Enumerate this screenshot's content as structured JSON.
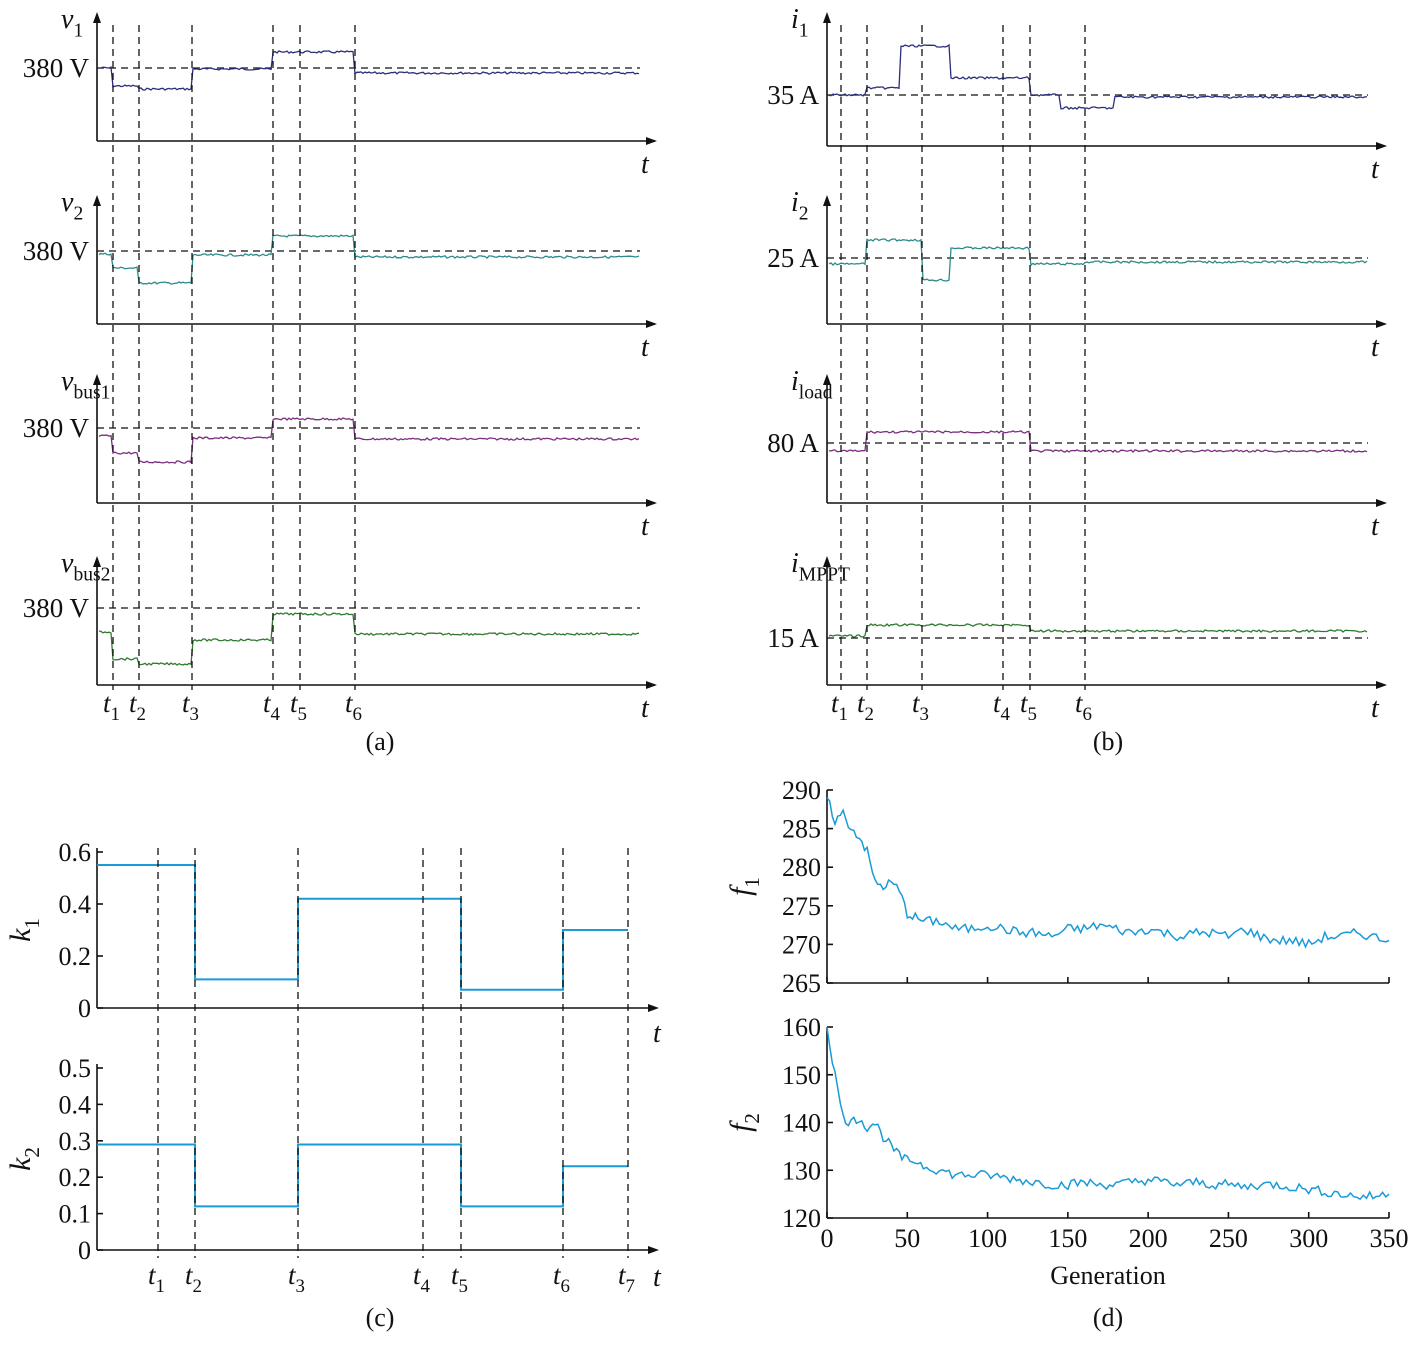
{
  "chart_data": [
    {
      "type": "line",
      "panel_label": "(a)",
      "x_label": "t",
      "time_labels": [
        {
          "base": "t",
          "sub": "1"
        },
        {
          "base": "t",
          "sub": "2"
        },
        {
          "base": "t",
          "sub": "3"
        },
        {
          "base": "t",
          "sub": "4"
        },
        {
          "base": "t",
          "sub": "5"
        },
        {
          "base": "t",
          "sub": "6"
        }
      ],
      "subplots": [
        {
          "ylabel": {
            "base": "v",
            "sub": "1"
          },
          "ref_label": "380 V",
          "color": "#2b2f7a"
        },
        {
          "ylabel": {
            "base": "v",
            "sub": "2"
          },
          "ref_label": "380 V",
          "color": "#2e8a8a"
        },
        {
          "ylabel": {
            "base": "v",
            "sub": "bus1"
          },
          "ref_label": "380 V",
          "color": "#7a2f7f"
        },
        {
          "ylabel": {
            "base": "v",
            "sub": "bus2"
          },
          "ref_label": "380 V",
          "color": "#2f7a2f"
        }
      ]
    },
    {
      "type": "line",
      "panel_label": "(b)",
      "x_label": "t",
      "time_labels": [
        {
          "base": "t",
          "sub": "1"
        },
        {
          "base": "t",
          "sub": "2"
        },
        {
          "base": "t",
          "sub": "3"
        },
        {
          "base": "t",
          "sub": "4"
        },
        {
          "base": "t",
          "sub": "5"
        },
        {
          "base": "t",
          "sub": "6"
        }
      ],
      "subplots": [
        {
          "ylabel": {
            "base": "i",
            "sub": "1"
          },
          "ref_label": "35 A",
          "color": "#2b2f7a"
        },
        {
          "ylabel": {
            "base": "i",
            "sub": "2"
          },
          "ref_label": "25 A",
          "color": "#2e8a8a"
        },
        {
          "ylabel": {
            "base": "i",
            "sub": "load"
          },
          "ref_label": "80 A",
          "color": "#7a2f7f"
        },
        {
          "ylabel": {
            "base": "i",
            "sub": "MPPT"
          },
          "ref_label": "15 A",
          "color": "#2f7a2f"
        }
      ]
    },
    {
      "type": "line",
      "panel_label": "(c)",
      "x_label": "t",
      "color": "#1a9ad6",
      "time_labels": [
        {
          "base": "t",
          "sub": "1"
        },
        {
          "base": "t",
          "sub": "2"
        },
        {
          "base": "t",
          "sub": "3"
        },
        {
          "base": "t",
          "sub": "4"
        },
        {
          "base": "t",
          "sub": "5"
        },
        {
          "base": "t",
          "sub": "6"
        },
        {
          "base": "t",
          "sub": "7"
        }
      ],
      "subplots": [
        {
          "ylabel": {
            "base": "k",
            "sub": "1"
          },
          "ylim": [
            0,
            0.6
          ],
          "yticks": [
            "0",
            "0.2",
            "0.4",
            "0.6"
          ],
          "segments": [
            {
              "interval": "start–t2",
              "value": 0.55
            },
            {
              "interval": "t2–t3",
              "value": 0.11
            },
            {
              "interval": "t3–t5",
              "value": 0.42
            },
            {
              "interval": "t5–t6",
              "value": 0.07
            },
            {
              "interval": "t6–t7",
              "value": 0.3
            }
          ]
        },
        {
          "ylabel": {
            "base": "k",
            "sub": "2"
          },
          "ylim": [
            0,
            0.5
          ],
          "yticks": [
            "0",
            "0.1",
            "0.2",
            "0.3",
            "0.4",
            "0.5"
          ],
          "segments": [
            {
              "interval": "start–t2",
              "value": 0.29
            },
            {
              "interval": "t2–t3",
              "value": 0.12
            },
            {
              "interval": "t3–t5",
              "value": 0.29
            },
            {
              "interval": "t5–t6",
              "value": 0.12
            },
            {
              "interval": "t6–t7",
              "value": 0.23
            }
          ]
        }
      ]
    },
    {
      "type": "line",
      "panel_label": "(d)",
      "xlabel": "Generation",
      "color": "#1a9ad6",
      "xlim": [
        0,
        350
      ],
      "xticks": [
        "0",
        "50",
        "100",
        "150",
        "200",
        "250",
        "300",
        "350"
      ],
      "subplots": [
        {
          "ylabel": {
            "base": "f",
            "sub": "1"
          },
          "ylim": [
            265,
            290
          ],
          "yticks": [
            "265",
            "270",
            "275",
            "280",
            "285",
            "290"
          ],
          "x": [
            0,
            5,
            10,
            15,
            20,
            25,
            30,
            35,
            40,
            45,
            50,
            55,
            60,
            70,
            80,
            90,
            100,
            110,
            120,
            130,
            140,
            150,
            160,
            170,
            180,
            190,
            200,
            210,
            220,
            230,
            240,
            250,
            260,
            270,
            280,
            290,
            300,
            310,
            320,
            330,
            340,
            350
          ],
          "values": [
            289,
            286,
            287,
            285,
            284,
            282,
            278,
            277.5,
            278,
            277,
            274,
            273.5,
            273,
            273,
            272,
            272,
            272.5,
            272,
            271.5,
            271.5,
            271,
            272,
            272,
            272.5,
            272,
            271.5,
            272,
            271.5,
            271,
            271.5,
            271.5,
            271,
            272,
            271,
            270.5,
            270.5,
            270,
            271,
            271,
            271.5,
            271,
            270.5
          ]
        },
        {
          "ylabel": {
            "base": "f",
            "sub": "2"
          },
          "ylim": [
            120,
            160
          ],
          "yticks": [
            "120",
            "130",
            "140",
            "150",
            "160"
          ],
          "x": [
            0,
            5,
            10,
            15,
            20,
            25,
            30,
            35,
            40,
            45,
            50,
            55,
            60,
            70,
            80,
            90,
            100,
            110,
            120,
            130,
            140,
            150,
            160,
            170,
            180,
            190,
            200,
            210,
            220,
            230,
            240,
            250,
            260,
            270,
            280,
            290,
            300,
            310,
            320,
            330,
            340,
            350
          ],
          "values": [
            160,
            150,
            141,
            140,
            141,
            139,
            140,
            137,
            135,
            133,
            132,
            132,
            131,
            130,
            129,
            129,
            129,
            128.5,
            128,
            127.5,
            127,
            127,
            127.5,
            127,
            127,
            127.5,
            128,
            127.5,
            127,
            127.5,
            127,
            127,
            126.5,
            127,
            127,
            126.5,
            126,
            125.5,
            125,
            124.5,
            124.5,
            125
          ]
        }
      ]
    }
  ]
}
